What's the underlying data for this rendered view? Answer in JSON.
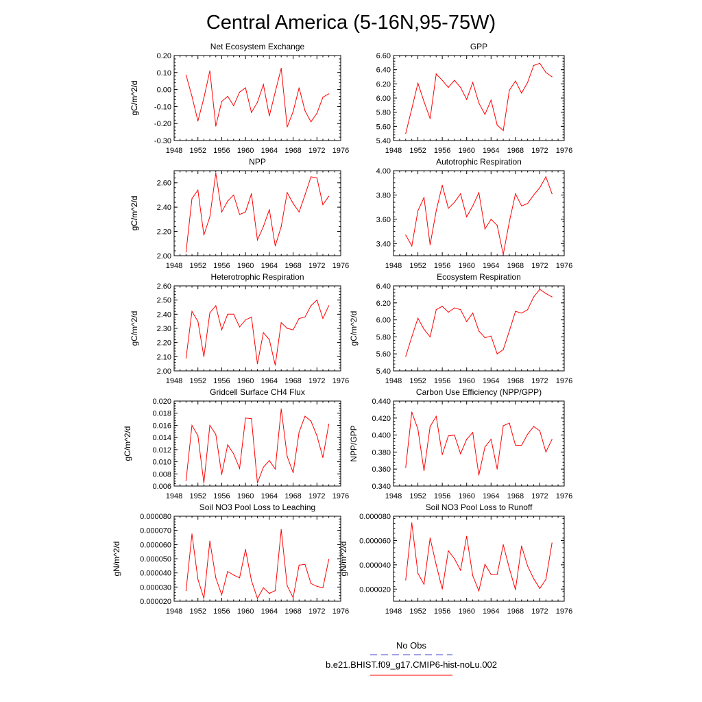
{
  "figure": {
    "title": "Central America (5-16N,95-75W)",
    "line_color": "#ff0000",
    "obs_color": "#4444cc",
    "legend": {
      "obs_label": "No Obs",
      "model_label": "b.e21.BHIST.f09_g17.CMIP6-hist-noLu.002"
    }
  },
  "chart_data": [
    {
      "type": "line",
      "title": "Net Ecosystem Exchange",
      "ylabel": "gC/m^2/d",
      "xlim": [
        1948,
        1976
      ],
      "ylim": [
        -0.3,
        0.2
      ],
      "xticks": [
        "1948",
        "1952",
        "1956",
        "1960",
        "1964",
        "1968",
        "1972",
        "1976"
      ],
      "yticks": [
        "-0.30",
        "-0.20",
        "-0.10",
        "0.00",
        "0.10",
        "0.20"
      ],
      "yticks_values": [
        -0.3,
        -0.2,
        -0.1,
        0.0,
        0.1,
        0.2
      ],
      "series": [
        {
          "x": [
            1950,
            1951,
            1952,
            1953,
            1954,
            1955,
            1956,
            1957,
            1958,
            1959,
            1960,
            1961,
            1962,
            1963,
            1964,
            1965,
            1966,
            1967,
            1968,
            1969,
            1970,
            1971,
            1972,
            1973,
            1974
          ],
          "values": [
            0.085,
            -0.04,
            -0.185,
            -0.05,
            0.11,
            -0.215,
            -0.07,
            -0.04,
            -0.095,
            -0.015,
            0.01,
            -0.135,
            -0.075,
            0.03,
            -0.155,
            -0.015,
            0.125,
            -0.22,
            -0.13,
            0.01,
            -0.125,
            -0.19,
            -0.14,
            -0.045,
            -0.025
          ]
        }
      ]
    },
    {
      "type": "line",
      "title": "GPP",
      "ylabel": "gC/m^2/d",
      "xlim": [
        1948,
        1976
      ],
      "ylim": [
        5.4,
        6.6
      ],
      "xticks": [
        "1948",
        "1952",
        "1956",
        "1960",
        "1964",
        "1968",
        "1972",
        "1976"
      ],
      "yticks": [
        "5.40",
        "5.60",
        "5.80",
        "6.00",
        "6.20",
        "6.40",
        "6.60"
      ],
      "yticks_values": [
        5.4,
        5.6,
        5.8,
        6.0,
        6.2,
        6.4,
        6.6
      ],
      "series": [
        {
          "x": [
            1950,
            1951,
            1952,
            1953,
            1954,
            1955,
            1956,
            1957,
            1958,
            1959,
            1960,
            1961,
            1962,
            1963,
            1964,
            1965,
            1966,
            1967,
            1968,
            1969,
            1970,
            1971,
            1972,
            1973,
            1974
          ],
          "values": [
            5.5,
            5.85,
            6.21,
            5.95,
            5.71,
            6.34,
            6.25,
            6.15,
            6.25,
            6.15,
            5.98,
            6.22,
            5.93,
            5.77,
            5.97,
            5.62,
            5.54,
            6.11,
            6.24,
            6.07,
            6.22,
            6.46,
            6.49,
            6.36,
            6.3
          ]
        }
      ]
    },
    {
      "type": "line",
      "title": "NPP",
      "ylabel": "gC/m^2/d",
      "xlim": [
        1948,
        1976
      ],
      "ylim": [
        2.0,
        2.7
      ],
      "xticks": [
        "1948",
        "1952",
        "1956",
        "1960",
        "1964",
        "1968",
        "1972",
        "1976"
      ],
      "yticks": [
        "2.00",
        "2.20",
        "2.40",
        "2.60"
      ],
      "yticks_values": [
        2.0,
        2.2,
        2.4,
        2.6
      ],
      "series": [
        {
          "x": [
            1950,
            1951,
            1952,
            1953,
            1954,
            1955,
            1956,
            1957,
            1958,
            1959,
            1960,
            1961,
            1962,
            1963,
            1964,
            1965,
            1966,
            1967,
            1968,
            1969,
            1970,
            1971,
            1972,
            1973,
            1974
          ],
          "values": [
            2.03,
            2.47,
            2.54,
            2.17,
            2.32,
            2.68,
            2.36,
            2.45,
            2.5,
            2.34,
            2.36,
            2.51,
            2.13,
            2.24,
            2.38,
            2.08,
            2.24,
            2.52,
            2.43,
            2.36,
            2.5,
            2.65,
            2.64,
            2.42,
            2.49
          ]
        }
      ]
    },
    {
      "type": "line",
      "title": "Autotrophic Respiration",
      "ylabel": "gC/m^2/d",
      "xlim": [
        1948,
        1976
      ],
      "ylim": [
        3.3,
        4.0
      ],
      "xticks": [
        "1948",
        "1952",
        "1956",
        "1960",
        "1964",
        "1968",
        "1972",
        "1976"
      ],
      "yticks": [
        "3.40",
        "3.60",
        "3.80",
        "4.00"
      ],
      "yticks_values": [
        3.4,
        3.6,
        3.8,
        4.0
      ],
      "series": [
        {
          "x": [
            1950,
            1951,
            1952,
            1953,
            1954,
            1955,
            1956,
            1957,
            1958,
            1959,
            1960,
            1961,
            1962,
            1963,
            1964,
            1965,
            1966,
            1967,
            1968,
            1969,
            1970,
            1971,
            1972,
            1973,
            1974
          ],
          "values": [
            3.47,
            3.38,
            3.67,
            3.78,
            3.39,
            3.67,
            3.88,
            3.69,
            3.74,
            3.81,
            3.62,
            3.71,
            3.82,
            3.52,
            3.6,
            3.55,
            3.31,
            3.58,
            3.81,
            3.71,
            3.73,
            3.8,
            3.86,
            3.95,
            3.81
          ]
        }
      ]
    },
    {
      "type": "line",
      "title": "Heterotrophic Respiration",
      "ylabel": "gC/m^2/d",
      "xlim": [
        1948,
        1976
      ],
      "ylim": [
        2.0,
        2.6
      ],
      "xticks": [
        "1948",
        "1952",
        "1956",
        "1960",
        "1964",
        "1968",
        "1972",
        "1976"
      ],
      "yticks": [
        "2.00",
        "2.10",
        "2.20",
        "2.30",
        "2.40",
        "2.50",
        "2.60"
      ],
      "yticks_values": [
        2.0,
        2.1,
        2.2,
        2.3,
        2.4,
        2.5,
        2.6
      ],
      "series": [
        {
          "x": [
            1950,
            1951,
            1952,
            1953,
            1954,
            1955,
            1956,
            1957,
            1958,
            1959,
            1960,
            1961,
            1962,
            1963,
            1964,
            1965,
            1966,
            1967,
            1968,
            1969,
            1970,
            1971,
            1972,
            1973,
            1974
          ],
          "values": [
            2.09,
            2.42,
            2.35,
            2.1,
            2.41,
            2.46,
            2.29,
            2.4,
            2.4,
            2.31,
            2.36,
            2.38,
            2.05,
            2.27,
            2.22,
            2.04,
            2.34,
            2.3,
            2.29,
            2.37,
            2.38,
            2.46,
            2.5,
            2.37,
            2.46
          ]
        }
      ]
    },
    {
      "type": "line",
      "title": "Ecosystem Respiration",
      "ylabel": "gC/m^2/d",
      "xlim": [
        1948,
        1976
      ],
      "ylim": [
        5.4,
        6.4
      ],
      "xticks": [
        "1948",
        "1952",
        "1956",
        "1960",
        "1964",
        "1968",
        "1972",
        "1976"
      ],
      "yticks": [
        "5.40",
        "5.60",
        "5.80",
        "6.00",
        "6.20",
        "6.40"
      ],
      "yticks_values": [
        5.4,
        5.6,
        5.8,
        6.0,
        6.2,
        6.4
      ],
      "series": [
        {
          "x": [
            1950,
            1951,
            1952,
            1953,
            1954,
            1955,
            1956,
            1957,
            1958,
            1959,
            1960,
            1961,
            1962,
            1963,
            1964,
            1965,
            1966,
            1967,
            1968,
            1969,
            1970,
            1971,
            1972,
            1973,
            1974
          ],
          "values": [
            5.57,
            5.8,
            6.02,
            5.89,
            5.8,
            6.12,
            6.16,
            6.09,
            6.14,
            6.12,
            5.98,
            6.08,
            5.87,
            5.79,
            5.81,
            5.6,
            5.65,
            5.87,
            6.1,
            6.08,
            6.12,
            6.27,
            6.36,
            6.31,
            6.27
          ]
        }
      ]
    },
    {
      "type": "line",
      "title": "Gridcell Surface CH4 Flux",
      "ylabel": "gC/m^2/d",
      "xlim": [
        1948,
        1976
      ],
      "ylim": [
        0.006,
        0.02
      ],
      "xticks": [
        "1948",
        "1952",
        "1956",
        "1960",
        "1964",
        "1968",
        "1972",
        "1976"
      ],
      "yticks": [
        "0.006",
        "0.008",
        "0.010",
        "0.012",
        "0.014",
        "0.016",
        "0.018",
        "0.020"
      ],
      "yticks_values": [
        0.006,
        0.008,
        0.01,
        0.012,
        0.014,
        0.016,
        0.018,
        0.02
      ],
      "series": [
        {
          "x": [
            1950,
            1951,
            1952,
            1953,
            1954,
            1955,
            1956,
            1957,
            1958,
            1959,
            1960,
            1961,
            1962,
            1963,
            1964,
            1965,
            1966,
            1967,
            1968,
            1969,
            1970,
            1971,
            1972,
            1973,
            1974
          ],
          "values": [
            0.0069,
            0.016,
            0.0143,
            0.0065,
            0.016,
            0.0145,
            0.0079,
            0.0128,
            0.0113,
            0.0089,
            0.0172,
            0.0171,
            0.0065,
            0.0091,
            0.0102,
            0.0088,
            0.0187,
            0.0109,
            0.0082,
            0.0149,
            0.0175,
            0.0167,
            0.0143,
            0.0107,
            0.0162
          ]
        }
      ]
    },
    {
      "type": "line",
      "title": "Carbon Use Efficiency (NPP/GPP)",
      "ylabel": "NPP/GPP",
      "xlim": [
        1948,
        1976
      ],
      "ylim": [
        0.34,
        0.44
      ],
      "xticks": [
        "1948",
        "1952",
        "1956",
        "1960",
        "1964",
        "1968",
        "1972",
        "1976"
      ],
      "yticks": [
        "0.340",
        "0.360",
        "0.380",
        "0.400",
        "0.420",
        "0.440"
      ],
      "yticks_values": [
        0.34,
        0.36,
        0.38,
        0.4,
        0.42,
        0.44
      ],
      "series": [
        {
          "x": [
            1950,
            1951,
            1952,
            1953,
            1954,
            1955,
            1956,
            1957,
            1958,
            1959,
            1960,
            1961,
            1962,
            1963,
            1964,
            1965,
            1966,
            1967,
            1968,
            1969,
            1970,
            1971,
            1972,
            1973,
            1974
          ],
          "values": [
            0.362,
            0.427,
            0.407,
            0.358,
            0.41,
            0.422,
            0.377,
            0.399,
            0.4,
            0.378,
            0.395,
            0.403,
            0.353,
            0.386,
            0.395,
            0.36,
            0.411,
            0.414,
            0.388,
            0.388,
            0.401,
            0.41,
            0.405,
            0.38,
            0.395
          ]
        }
      ]
    },
    {
      "type": "line",
      "title": "Soil NO3 Pool Loss to Leaching",
      "ylabel": "gN/m^2/d",
      "xlim": [
        1948,
        1976
      ],
      "ylim": [
        2e-05,
        8e-05
      ],
      "xticks": [
        "1948",
        "1952",
        "1956",
        "1960",
        "1964",
        "1968",
        "1972",
        "1976"
      ],
      "yticks": [
        "0.000020",
        "0.000030",
        "0.000040",
        "0.000050",
        "0.000060",
        "0.000070",
        "0.000080"
      ],
      "yticks_values": [
        2e-05,
        3e-05,
        4e-05,
        5e-05,
        6e-05,
        7e-05,
        8e-05
      ],
      "series": [
        {
          "x": [
            1950,
            1951,
            1952,
            1953,
            1954,
            1955,
            1956,
            1957,
            1958,
            1959,
            1960,
            1961,
            1962,
            1963,
            1964,
            1965,
            1966,
            1967,
            1968,
            1969,
            1970,
            1971,
            1972,
            1973,
            1974
          ],
          "values": [
            2.75e-05,
            6.75e-05,
            3.55e-05,
            2.2e-05,
            6.25e-05,
            3.65e-05,
            2.45e-05,
            4.1e-05,
            3.85e-05,
            3.65e-05,
            5.65e-05,
            3.45e-05,
            2.2e-05,
            2.95e-05,
            2.55e-05,
            2.75e-05,
            7.05e-05,
            3.1e-05,
            2.25e-05,
            4.55e-05,
            4.6e-05,
            3.25e-05,
            3.05e-05,
            2.95e-05,
            4.95e-05
          ]
        }
      ]
    },
    {
      "type": "line",
      "title": "Soil NO3 Pool Loss to Runoff",
      "ylabel": "gN/m^2/d",
      "xlim": [
        1948,
        1976
      ],
      "ylim": [
        1e-05,
        8e-05
      ],
      "xticks": [
        "1948",
        "1952",
        "1956",
        "1960",
        "1964",
        "1968",
        "1972",
        "1976"
      ],
      "yticks": [
        "0.000020",
        "0.000040",
        "0.000060",
        "0.000080"
      ],
      "yticks_values": [
        2e-05,
        4e-05,
        6e-05,
        8e-05
      ],
      "series": [
        {
          "x": [
            1950,
            1951,
            1952,
            1953,
            1954,
            1955,
            1956,
            1957,
            1958,
            1959,
            1960,
            1961,
            1962,
            1963,
            1964,
            1965,
            1966,
            1967,
            1968,
            1969,
            1970,
            1971,
            1972,
            1973,
            1974
          ],
          "values": [
            2.75e-05,
            7.45e-05,
            3.3e-05,
            2.4e-05,
            6.2e-05,
            4e-05,
            2e-05,
            5.15e-05,
            4.5e-05,
            3.55e-05,
            6.35e-05,
            3.1e-05,
            1.85e-05,
            4.05e-05,
            3.2e-05,
            3.2e-05,
            5.65e-05,
            3.7e-05,
            1.95e-05,
            5.55e-05,
            3.9e-05,
            2.85e-05,
            2.05e-05,
            2.8e-05,
            5.8e-05
          ]
        }
      ]
    }
  ]
}
